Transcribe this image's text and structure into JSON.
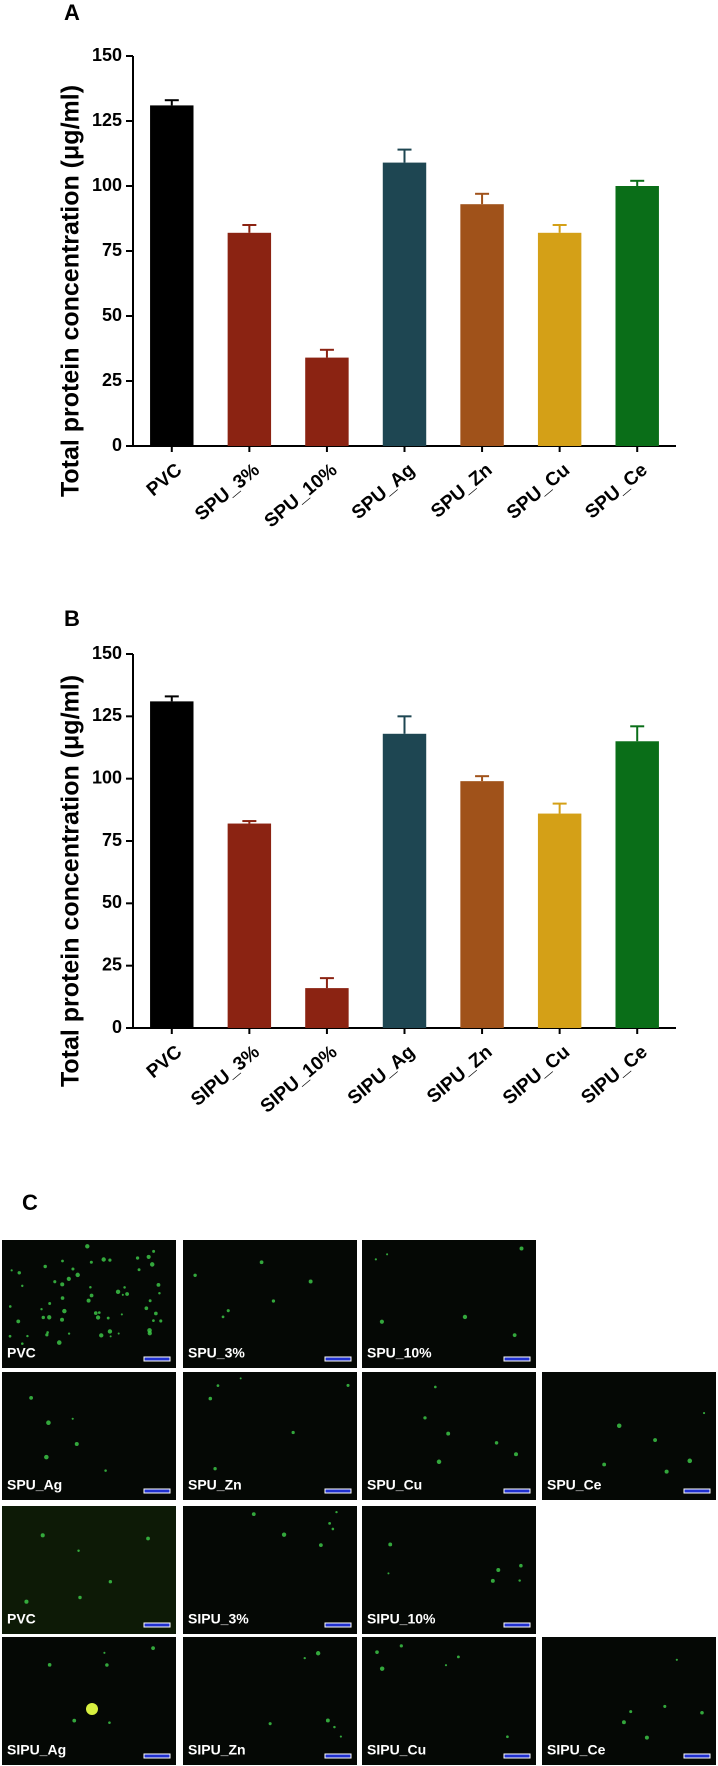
{
  "chart_data": [
    {
      "type": "bar",
      "panel": "A",
      "ylabel": "Total protein concentration (μg/ml)",
      "categories": [
        "PVC",
        "SPU_3%",
        "SPU_10%",
        "SPU_Ag",
        "SPU_Zn",
        "SPU_Cu",
        "SPU_Ce"
      ],
      "values": [
        131,
        82,
        34,
        109,
        93,
        82,
        100
      ],
      "errors": [
        2,
        3,
        3,
        5,
        4,
        3,
        2
      ],
      "colors": [
        "#000000",
        "#8b2312",
        "#8b2312",
        "#1e4652",
        "#a0521a",
        "#d4a017",
        "#0a6e18"
      ],
      "ylim": [
        0,
        150
      ],
      "yticks": [
        0,
        25,
        50,
        75,
        100,
        125,
        150
      ]
    },
    {
      "type": "bar",
      "panel": "B",
      "ylabel": "Total protein concentration (μg/ml)",
      "categories": [
        "PVC",
        "SIPU_3%",
        "SIPU_10%",
        "SIPU_Ag",
        "SIPU_Zn",
        "SIPU_Cu",
        "SIPU_Ce"
      ],
      "values": [
        131,
        82,
        16,
        118,
        99,
        86,
        115
      ],
      "errors": [
        2,
        1,
        4,
        7,
        2,
        4,
        6
      ],
      "colors": [
        "#000000",
        "#8b2312",
        "#8b2312",
        "#1e4652",
        "#a0521a",
        "#d4a017",
        "#0a6e18"
      ],
      "ylim": [
        0,
        150
      ],
      "yticks": [
        0,
        25,
        50,
        75,
        100,
        125,
        150
      ]
    }
  ],
  "panel_c": {
    "label": "C",
    "rows": [
      [
        "PVC",
        "SPU_3%",
        "SPU_10%"
      ],
      [
        "SPU_Ag",
        "SPU_Zn",
        "SPU_Cu",
        "SPU_Ce"
      ],
      [
        "PVC",
        "SIPU_3%",
        "SIPU_10%"
      ],
      [
        "SIPU_Ag",
        "SIPU_Zn",
        "SIPU_Cu",
        "SIPU_Ce"
      ]
    ]
  }
}
